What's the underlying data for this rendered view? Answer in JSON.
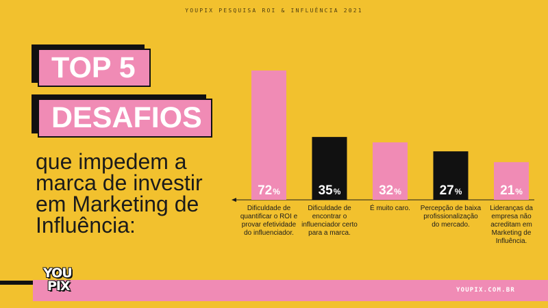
{
  "header": {
    "text": "YOUPIX PESQUISA ROI & INFLUÊNCIA 2021"
  },
  "title": {
    "line1": "TOP 5",
    "line2": "DESAFIOS"
  },
  "subtitle": "que impedem a marca de investir em Marketing de Influência:",
  "colors": {
    "background": "#F2C12E",
    "pink": "#F08BB5",
    "black": "#111111",
    "white": "#FFFFFF"
  },
  "chart_data": {
    "type": "bar",
    "categories": [
      "Dificuldade de quantificar o ROI e provar efetividade do influenciador.",
      "Dificuldade de encontrar o influenciador certo para a marca.",
      "É muito caro.",
      "Percepção de baixa profissionalização do mercado.",
      "Lideranças da empresa não acreditam em Marketing de Influência."
    ],
    "values": [
      72,
      35,
      32,
      27,
      21
    ],
    "value_labels": [
      "72",
      "35",
      "32",
      "27",
      "21"
    ],
    "unit": "%",
    "bar_colors": [
      "#F08BB5",
      "#111111",
      "#F08BB5",
      "#111111",
      "#F08BB5"
    ],
    "ylim": [
      0,
      72
    ],
    "axis_arrow": "left",
    "grid": false
  },
  "footer": {
    "logo_line1": "YOU",
    "logo_line2": "PIX",
    "url": "YOUPIX.COM.BR"
  }
}
